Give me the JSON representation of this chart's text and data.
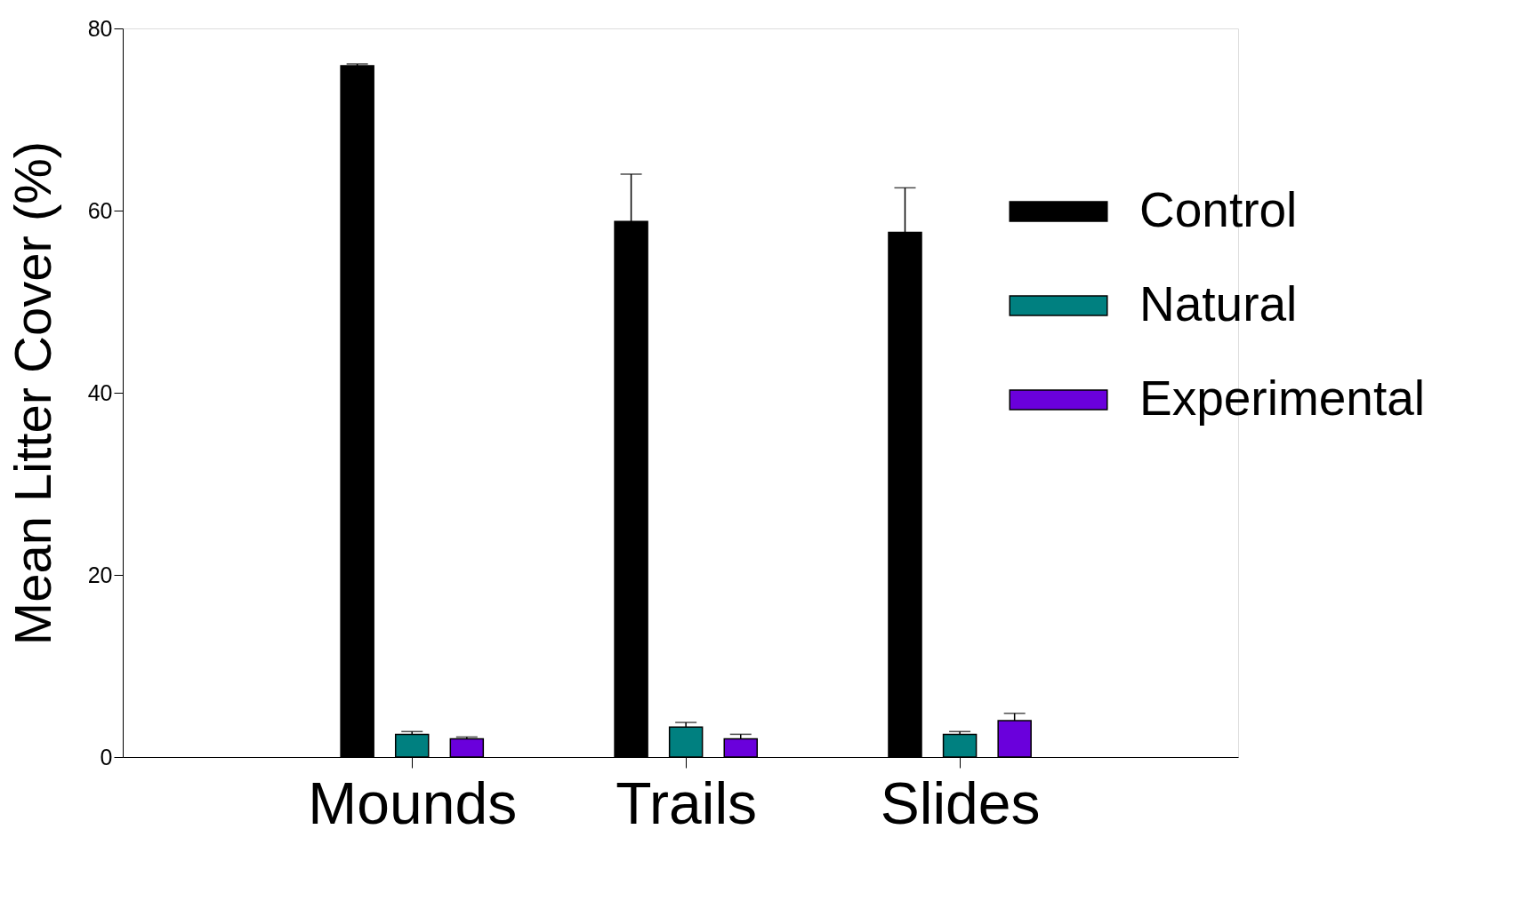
{
  "chart_data": {
    "type": "bar",
    "ylabel": "Mean Litter Cover (%)",
    "categories": [
      "Mounds",
      "Trails",
      "Slides"
    ],
    "series": [
      {
        "name": "Control",
        "color": "#000000",
        "values": [
          75.9,
          58.8,
          57.6
        ],
        "errors": [
          [
            75.9,
            76.1
          ],
          [
            58.8,
            64.0
          ],
          [
            57.6,
            62.5
          ]
        ]
      },
      {
        "name": "Natural",
        "color": "#008080",
        "values": [
          2.5,
          3.3,
          2.5
        ],
        "errors": [
          [
            2.5,
            2.8
          ],
          [
            3.3,
            3.8
          ],
          [
            2.5,
            2.8
          ]
        ]
      },
      {
        "name": "Experimental",
        "color": "#6a00dc",
        "values": [
          2.0,
          2.0,
          4.0
        ],
        "errors": [
          [
            2.0,
            2.2
          ],
          [
            2.0,
            2.5
          ],
          [
            4.0,
            4.8
          ]
        ]
      }
    ],
    "ylim": [
      0,
      80
    ],
    "yticks": [
      0,
      20,
      40,
      60,
      80
    ],
    "grid": false,
    "legend": "top right"
  }
}
